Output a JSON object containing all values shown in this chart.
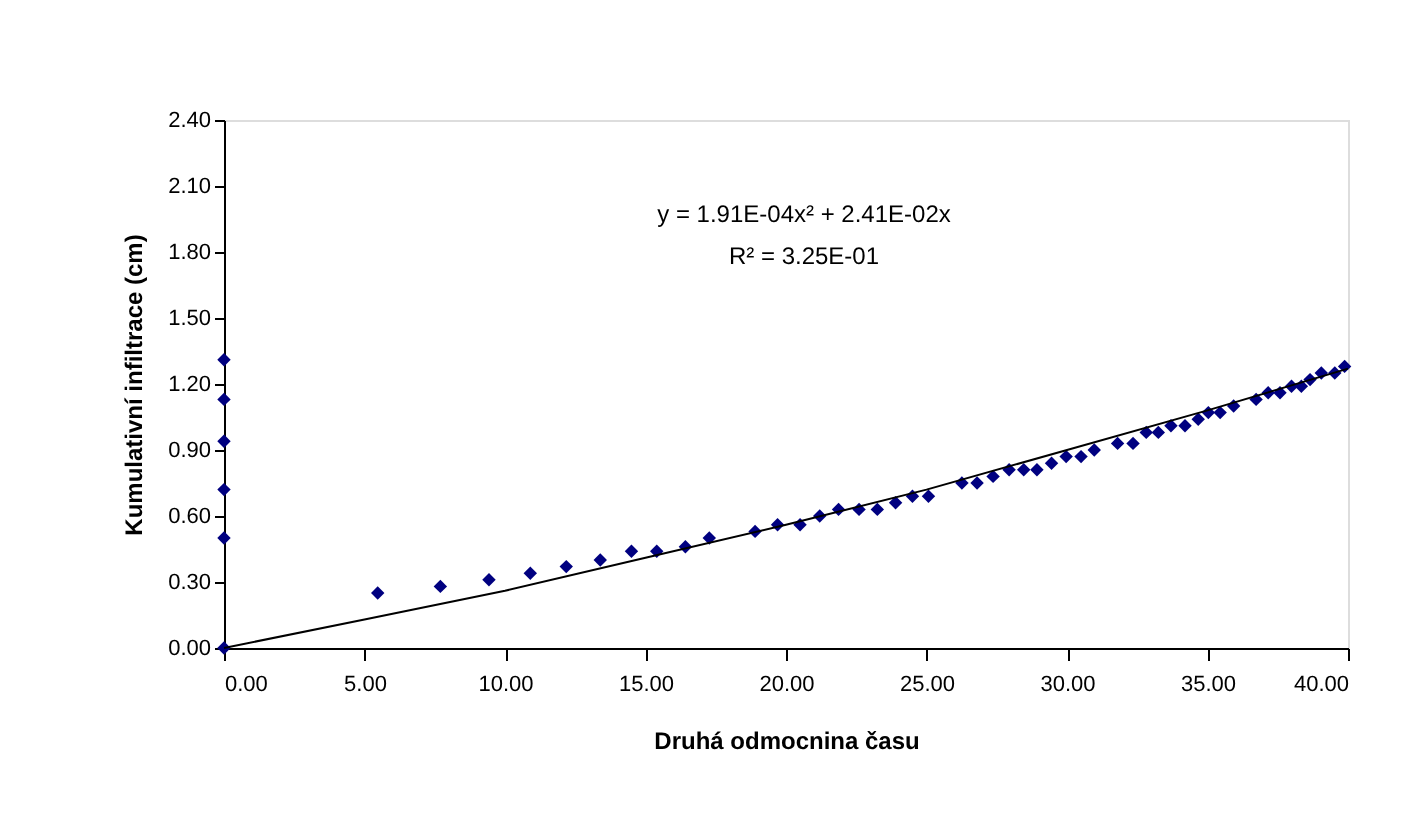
{
  "chart_data": {
    "type": "scatter",
    "xlabel": "Druhá odmocnina času",
    "ylabel": "Kumulativní infiltrace (cm)",
    "annotations": [
      "y = 1.91E-04x² + 2.41E-02x",
      "R² = 3.25E-01"
    ],
    "xlim": [
      0,
      40
    ],
    "xticks": [
      {
        "value": 0,
        "label": "0.00"
      },
      {
        "value": 5,
        "label": "5.00"
      },
      {
        "value": 10,
        "label": "10.00"
      },
      {
        "value": 15,
        "label": "15.00"
      },
      {
        "value": 20,
        "label": "20.00"
      },
      {
        "value": 25,
        "label": "25.00"
      },
      {
        "value": 30,
        "label": "30.00"
      },
      {
        "value": 35,
        "label": "35.00"
      },
      {
        "value": 40,
        "label": "40.00"
      }
    ],
    "ylim": [
      0,
      2.4
    ],
    "yticks": [
      {
        "value": 0,
        "label": "0.00"
      },
      {
        "value": 0.3,
        "label": "0.30"
      },
      {
        "value": 0.6,
        "label": "0.60"
      },
      {
        "value": 0.9,
        "label": "0.90"
      },
      {
        "value": 1.2,
        "label": "1.20"
      },
      {
        "value": 1.5,
        "label": "1.50"
      },
      {
        "value": 1.8,
        "label": "1.80"
      },
      {
        "value": 2.1,
        "label": "2.10"
      },
      {
        "value": 2.4,
        "label": "2.40"
      }
    ],
    "grid": false,
    "series": [
      {
        "color": "#000080",
        "marker": "diamond",
        "x": [
          0,
          0,
          0,
          0,
          0,
          0,
          5.47,
          7.7,
          9.43,
          10.9,
          12.18,
          13.39,
          14.5,
          15.4,
          16.42,
          17.27,
          18.9,
          19.7,
          20.5,
          21.2,
          21.87,
          22.6,
          23.25,
          23.9,
          24.5,
          25.07,
          26.26,
          26.8,
          27.37,
          27.94,
          28.46,
          28.93,
          29.45,
          29.97,
          30.5,
          30.97,
          31.8,
          32.35,
          32.82,
          33.25,
          33.7,
          34.2,
          34.67,
          35.03,
          35.45,
          35.93,
          36.73,
          37.16,
          37.58,
          37.99,
          38.34,
          38.65,
          39.05,
          39.53,
          39.88
        ],
        "values": [
          0,
          0.5,
          0.72,
          0.94,
          1.13,
          1.31,
          0.25,
          0.28,
          0.31,
          0.34,
          0.37,
          0.4,
          0.44,
          0.44,
          0.46,
          0.5,
          0.53,
          0.56,
          0.56,
          0.6,
          0.63,
          0.63,
          0.63,
          0.66,
          0.69,
          0.69,
          0.75,
          0.75,
          0.78,
          0.81,
          0.81,
          0.81,
          0.84,
          0.87,
          0.87,
          0.9,
          0.93,
          0.93,
          0.98,
          0.98,
          1.01,
          1.01,
          1.04,
          1.07,
          1.07,
          1.1,
          1.13,
          1.16,
          1.16,
          1.19,
          1.19,
          1.22,
          1.25,
          1.25,
          1.28
        ]
      },
      {
        "type": "line",
        "color": "#000000",
        "line_style": "solid",
        "x": [
          0,
          5,
          10,
          15,
          20,
          25,
          30,
          35,
          40
        ],
        "values": [
          0,
          0.13,
          0.26,
          0.41,
          0.56,
          0.72,
          0.9,
          1.08,
          1.27
        ]
      }
    ]
  }
}
